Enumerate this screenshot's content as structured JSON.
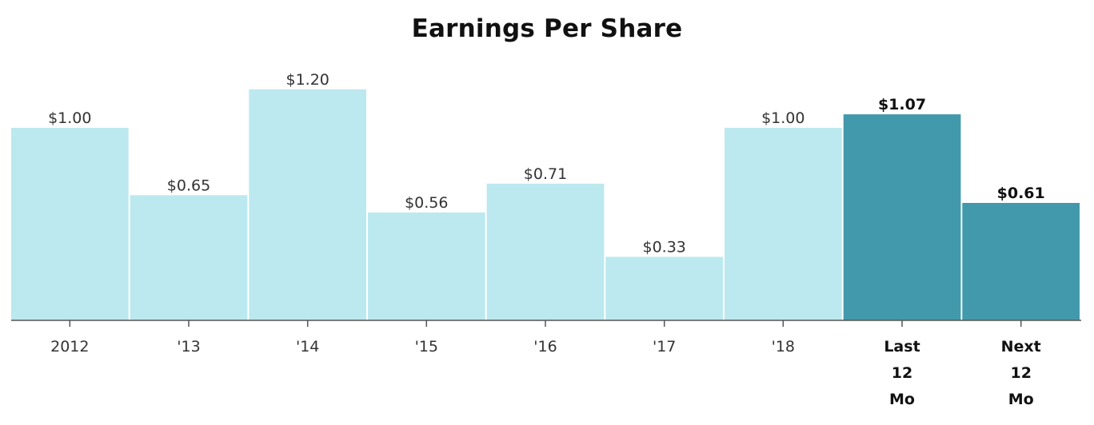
{
  "chart_data": {
    "type": "bar",
    "title": "Earnings Per Share",
    "xlabel": "",
    "ylabel": "",
    "ylim": [
      0,
      1.3
    ],
    "grid": false,
    "legend": "none",
    "categories": [
      [
        "2012"
      ],
      [
        "'13"
      ],
      [
        "'14"
      ],
      [
        "'15"
      ],
      [
        "'16"
      ],
      [
        "'17"
      ],
      [
        "'18"
      ],
      [
        "Last",
        "12",
        "Mo"
      ],
      [
        "Next",
        "12",
        "Mo"
      ]
    ],
    "values": [
      1.0,
      0.65,
      1.2,
      0.56,
      0.71,
      0.33,
      1.0,
      1.07,
      0.61
    ],
    "value_labels": [
      "$1.00",
      "$0.65",
      "$1.20",
      "$0.56",
      "$0.71",
      "$0.33",
      "$1.00",
      "$1.07",
      "$0.61"
    ],
    "emphasized": [
      false,
      false,
      false,
      false,
      false,
      false,
      false,
      true,
      true
    ],
    "colors": {
      "historical": "#bbe9ef",
      "emphasized": "#4399ac",
      "axis": "#555555"
    }
  }
}
